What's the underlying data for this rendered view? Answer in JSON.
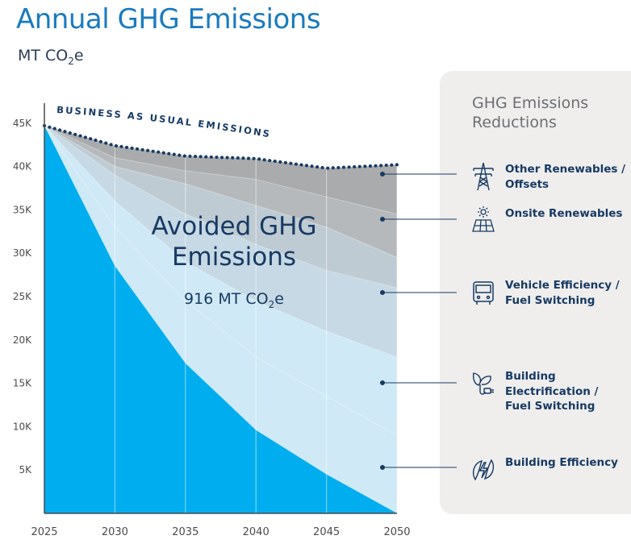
{
  "header": {
    "title": "Annual GHG Emissions",
    "unit_main": "MT CO",
    "unit_sub": "2",
    "unit_end": "e"
  },
  "annotation": {
    "bau_label": "BUSINESS AS USUAL EMISSIONS",
    "avoided_line1": "Avoided GHG",
    "avoided_line2": "Emissions",
    "avoided_value_main": "916 MT CO",
    "avoided_value_sub": "2",
    "avoided_value_end": "e"
  },
  "legend": {
    "title": "GHG Emissions Reductions",
    "items": [
      {
        "label": "Other Renewables / Offsets",
        "icon": "transmission-tower-icon"
      },
      {
        "label": "Onsite Renewables",
        "icon": "solar-panel-icon"
      },
      {
        "label": "Vehicle Efficiency / Fuel Switching",
        "icon": "vehicle-icon"
      },
      {
        "label": "Building Electrification / Fuel Switching",
        "icon": "plug-leaf-icon"
      },
      {
        "label": "Building Efficiency",
        "icon": "leaf-bolt-icon"
      }
    ]
  },
  "colors": {
    "title": "#1a7ac0",
    "actual": "#00aeef",
    "bands": [
      "#cfe9f6",
      "#c6d9e4",
      "#bfcbd3",
      "#b4b9bd",
      "#a8aaab"
    ],
    "bau_line": "#173a63",
    "text_dark": "#173a63"
  },
  "chart_data": {
    "type": "area",
    "x": [
      2025,
      2030,
      2035,
      2040,
      2045,
      2050
    ],
    "xticks": [
      "2025",
      "2030",
      "2035",
      "2040",
      "2045",
      "2050"
    ],
    "yticks": [
      "5K",
      "10K",
      "15K",
      "20K",
      "25K",
      "30K",
      "35K",
      "40K",
      "45K"
    ],
    "ylim": [
      0,
      46000
    ],
    "xlim": [
      2025,
      2050
    ],
    "series": [
      {
        "name": "",
        "values": [
          44700,
          28500,
          17300,
          9600,
          4500,
          0
        ]
      },
      {
        "name": "Building Efficiency",
        "values": [
          44700,
          33000,
          24500,
          18000,
          13500,
          9000
        ]
      },
      {
        "name": "Building Electrification / Fuel Switching",
        "values": [
          44700,
          36000,
          29000,
          24500,
          21000,
          18000
        ]
      },
      {
        "name": "Vehicle Efficiency / Fuel Switching",
        "values": [
          44700,
          39000,
          34500,
          31000,
          28000,
          26000
        ]
      },
      {
        "name": "Onsite Renewables",
        "values": [
          44700,
          40000,
          38000,
          35500,
          33000,
          29500
        ]
      },
      {
        "name": "Other Renewables / Offsets",
        "values": [
          44700,
          41000,
          39500,
          38500,
          36500,
          34500
        ]
      },
      {
        "name": "BUSINESS AS USUAL EMISSIONS",
        "values": [
          44700,
          42400,
          41200,
          40900,
          39800,
          40200
        ]
      }
    ],
    "legend_position": "right",
    "grid": "vertical"
  }
}
